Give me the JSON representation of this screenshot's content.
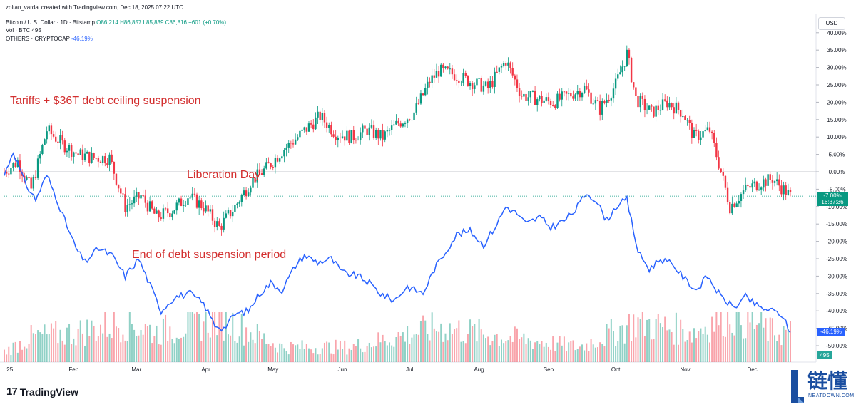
{
  "header": {
    "created_by": "zoltan_vardai created with TradingView.com, Dec 18, 2025 07:22 UTC",
    "symbol": "Bitcoin / U.S. Dollar · 1D · Bitstamp",
    "ohlc": "O86,214 H86,857 L85,839 C86,816 +601 (+0.70%)",
    "vol_label": "Vol · BTC",
    "vol_value": "495",
    "others_label": "OTHERS · CRYPTOCAP",
    "others_value": "-46.19%"
  },
  "currency_button": "USD",
  "annotations": {
    "tariffs": "Tariffs + $36T debt ceiling suspension",
    "liberation": "Liberation Day",
    "end_debt": "End of debt suspension period"
  },
  "badges": {
    "btc_pct": "-7.00%",
    "countdown": "16:37:36",
    "others_pct": "-46.19%",
    "vol": "495"
  },
  "logo": {
    "mark": "17",
    "name": "TradingView"
  },
  "watermark": {
    "cn": "链懂",
    "en": "NEATDOWN.COM"
  },
  "colors": {
    "up": "#089981",
    "down": "#f23645",
    "others": "#2962ff",
    "annotation": "#d32f2f"
  },
  "chart_data": {
    "type": "line",
    "title": "Bitcoin / U.S. Dollar · 1D · Bitstamp",
    "y_axis": {
      "unit": "%",
      "range": [
        -53,
        42
      ],
      "ticks": [
        "40.00%",
        "35.00%",
        "30.00%",
        "25.00%",
        "20.00%",
        "15.00%",
        "10.00%",
        "5.00%",
        "0.00%",
        "-5.00%",
        "-10.00%",
        "-15.00%",
        "-20.00%",
        "-25.00%",
        "-30.00%",
        "-35.00%",
        "-40.00%",
        "-45.00%",
        "-50.00%"
      ]
    },
    "x_axis": {
      "range": [
        "2025-01-01",
        "2025-12-18"
      ],
      "ticks": [
        "'25",
        "Feb",
        "Mar",
        "Apr",
        "May",
        "Jun",
        "Jul",
        "Aug",
        "Sep",
        "Oct",
        "Nov",
        "Dec"
      ]
    },
    "series": [
      {
        "name": "Bitcoin / U.S. Dollar",
        "kind": "candlestick (percent change, approximate close)",
        "points": [
          [
            "2025-01-01",
            0
          ],
          [
            "2025-01-07",
            3
          ],
          [
            "2025-01-13",
            -5
          ],
          [
            "2025-01-20",
            12
          ],
          [
            "2025-01-27",
            8
          ],
          [
            "2025-02-03",
            5
          ],
          [
            "2025-02-10",
            4
          ],
          [
            "2025-02-17",
            4
          ],
          [
            "2025-02-24",
            -10
          ],
          [
            "2025-03-03",
            -7
          ],
          [
            "2025-03-10",
            -13
          ],
          [
            "2025-03-17",
            -11
          ],
          [
            "2025-03-24",
            -7
          ],
          [
            "2025-03-31",
            -10
          ],
          [
            "2025-04-07",
            -16
          ],
          [
            "2025-04-14",
            -10
          ],
          [
            "2025-04-21",
            -3
          ],
          [
            "2025-04-28",
            1
          ],
          [
            "2025-05-05",
            6
          ],
          [
            "2025-05-12",
            10
          ],
          [
            "2025-05-22",
            16
          ],
          [
            "2025-05-29",
            11
          ],
          [
            "2025-06-05",
            10
          ],
          [
            "2025-06-12",
            12
          ],
          [
            "2025-06-19",
            10
          ],
          [
            "2025-06-26",
            14
          ],
          [
            "2025-07-03",
            17
          ],
          [
            "2025-07-10",
            26
          ],
          [
            "2025-07-14",
            29
          ],
          [
            "2025-07-21",
            28
          ],
          [
            "2025-07-28",
            26
          ],
          [
            "2025-08-05",
            24
          ],
          [
            "2025-08-13",
            32
          ],
          [
            "2025-08-20",
            22
          ],
          [
            "2025-08-27",
            21
          ],
          [
            "2025-09-03",
            20
          ],
          [
            "2025-09-10",
            22
          ],
          [
            "2025-09-17",
            24
          ],
          [
            "2025-09-24",
            18
          ],
          [
            "2025-10-01",
            25
          ],
          [
            "2025-10-06",
            34
          ],
          [
            "2025-10-10",
            21
          ],
          [
            "2025-10-17",
            17
          ],
          [
            "2025-10-24",
            20
          ],
          [
            "2025-10-31",
            17
          ],
          [
            "2025-11-05",
            10
          ],
          [
            "2025-11-12",
            12
          ],
          [
            "2025-11-17",
            0
          ],
          [
            "2025-11-21",
            -10
          ],
          [
            "2025-11-28",
            -5
          ],
          [
            "2025-12-05",
            -3
          ],
          [
            "2025-12-10",
            -2
          ],
          [
            "2025-12-18",
            -7
          ]
        ]
      },
      {
        "name": "OTHERS · CRYPTOCAP",
        "kind": "line (percent change)",
        "points": [
          [
            "2025-01-01",
            -1
          ],
          [
            "2025-01-05",
            6
          ],
          [
            "2025-01-10",
            -3
          ],
          [
            "2025-01-15",
            -8
          ],
          [
            "2025-01-20",
            -1
          ],
          [
            "2025-01-24",
            -7
          ],
          [
            "2025-01-28",
            -14
          ],
          [
            "2025-02-02",
            -22
          ],
          [
            "2025-02-06",
            -26
          ],
          [
            "2025-02-12",
            -22
          ],
          [
            "2025-02-18",
            -24
          ],
          [
            "2025-02-24",
            -30
          ],
          [
            "2025-03-02",
            -25
          ],
          [
            "2025-03-08",
            -34
          ],
          [
            "2025-03-12",
            -40
          ],
          [
            "2025-03-18",
            -36
          ],
          [
            "2025-03-25",
            -35
          ],
          [
            "2025-03-31",
            -38
          ],
          [
            "2025-04-05",
            -44
          ],
          [
            "2025-04-09",
            -45
          ],
          [
            "2025-04-14",
            -41
          ],
          [
            "2025-04-20",
            -40
          ],
          [
            "2025-04-25",
            -35
          ],
          [
            "2025-04-30",
            -32
          ],
          [
            "2025-05-05",
            -34
          ],
          [
            "2025-05-11",
            -27
          ],
          [
            "2025-05-15",
            -24
          ],
          [
            "2025-05-21",
            -26
          ],
          [
            "2025-05-27",
            -25
          ],
          [
            "2025-06-01",
            -29
          ],
          [
            "2025-06-08",
            -30
          ],
          [
            "2025-06-13",
            -32
          ],
          [
            "2025-06-18",
            -35
          ],
          [
            "2025-06-24",
            -37
          ],
          [
            "2025-06-30",
            -33
          ],
          [
            "2025-07-07",
            -35
          ],
          [
            "2025-07-12",
            -28
          ],
          [
            "2025-07-17",
            -23
          ],
          [
            "2025-07-22",
            -18
          ],
          [
            "2025-07-28",
            -17
          ],
          [
            "2025-08-03",
            -21
          ],
          [
            "2025-08-08",
            -16
          ],
          [
            "2025-08-13",
            -10
          ],
          [
            "2025-08-18",
            -12
          ],
          [
            "2025-08-22",
            -15
          ],
          [
            "2025-08-28",
            -13
          ],
          [
            "2025-09-02",
            -16
          ],
          [
            "2025-09-08",
            -14
          ],
          [
            "2025-09-13",
            -11
          ],
          [
            "2025-09-18",
            -6
          ],
          [
            "2025-09-22",
            -8
          ],
          [
            "2025-09-27",
            -14
          ],
          [
            "2025-10-01",
            -10
          ],
          [
            "2025-10-06",
            -8
          ],
          [
            "2025-10-11",
            -23
          ],
          [
            "2025-10-16",
            -28
          ],
          [
            "2025-10-21",
            -25
          ],
          [
            "2025-10-27",
            -27
          ],
          [
            "2025-11-01",
            -31
          ],
          [
            "2025-11-06",
            -34
          ],
          [
            "2025-11-11",
            -30
          ],
          [
            "2025-11-17",
            -36
          ],
          [
            "2025-11-23",
            -39
          ],
          [
            "2025-11-28",
            -36
          ],
          [
            "2025-12-04",
            -39
          ],
          [
            "2025-12-10",
            -40
          ],
          [
            "2025-12-14",
            -41
          ],
          [
            "2025-12-18",
            -46.19
          ]
        ]
      },
      {
        "name": "Vol · BTC",
        "kind": "volume histogram (relative)",
        "points": [
          [
            "2025-01-01",
            0.2
          ],
          [
            "2025-01-13",
            0.5
          ],
          [
            "2025-02-03",
            0.6
          ],
          [
            "2025-02-24",
            0.8
          ],
          [
            "2025-03-10",
            0.6
          ],
          [
            "2025-04-07",
            0.9
          ],
          [
            "2025-05-05",
            0.3
          ],
          [
            "2025-06-05",
            0.3
          ],
          [
            "2025-07-14",
            0.7
          ],
          [
            "2025-08-13",
            0.5
          ],
          [
            "2025-09-15",
            0.3
          ],
          [
            "2025-10-10",
            0.8
          ],
          [
            "2025-11-05",
            0.6
          ],
          [
            "2025-11-21",
            1.0
          ],
          [
            "2025-12-10",
            0.6
          ]
        ]
      }
    ]
  }
}
